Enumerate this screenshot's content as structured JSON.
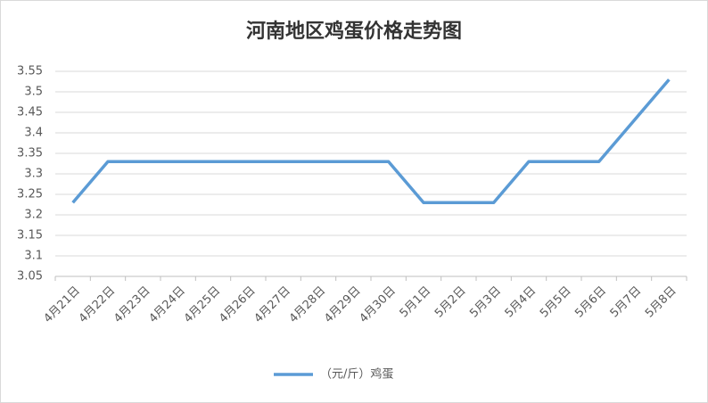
{
  "chart_data": {
    "type": "line",
    "title": "河南地区鸡蛋价格走势图",
    "categories": [
      "4月21日",
      "4月22日",
      "4月23日",
      "4月24日",
      "4月25日",
      "4月26日",
      "4月27日",
      "4月28日",
      "4月29日",
      "4月30日",
      "5月1日",
      "5月2日",
      "5月3日",
      "5月4日",
      "5月5日",
      "5月6日",
      "5月7日",
      "5月8日"
    ],
    "series": [
      {
        "name": "（元/斤）鸡蛋",
        "color": "#5b9bd5",
        "values": [
          3.23,
          3.33,
          3.33,
          3.33,
          3.33,
          3.33,
          3.33,
          3.33,
          3.33,
          3.33,
          3.23,
          3.23,
          3.23,
          3.33,
          3.33,
          3.33,
          3.43,
          3.53
        ]
      }
    ],
    "ylim": [
      3.05,
      3.55
    ],
    "yticks": [
      3.05,
      3.1,
      3.15,
      3.2,
      3.25,
      3.3,
      3.35,
      3.4,
      3.45,
      3.5,
      3.55
    ],
    "grid": true,
    "legend": "bottom"
  }
}
